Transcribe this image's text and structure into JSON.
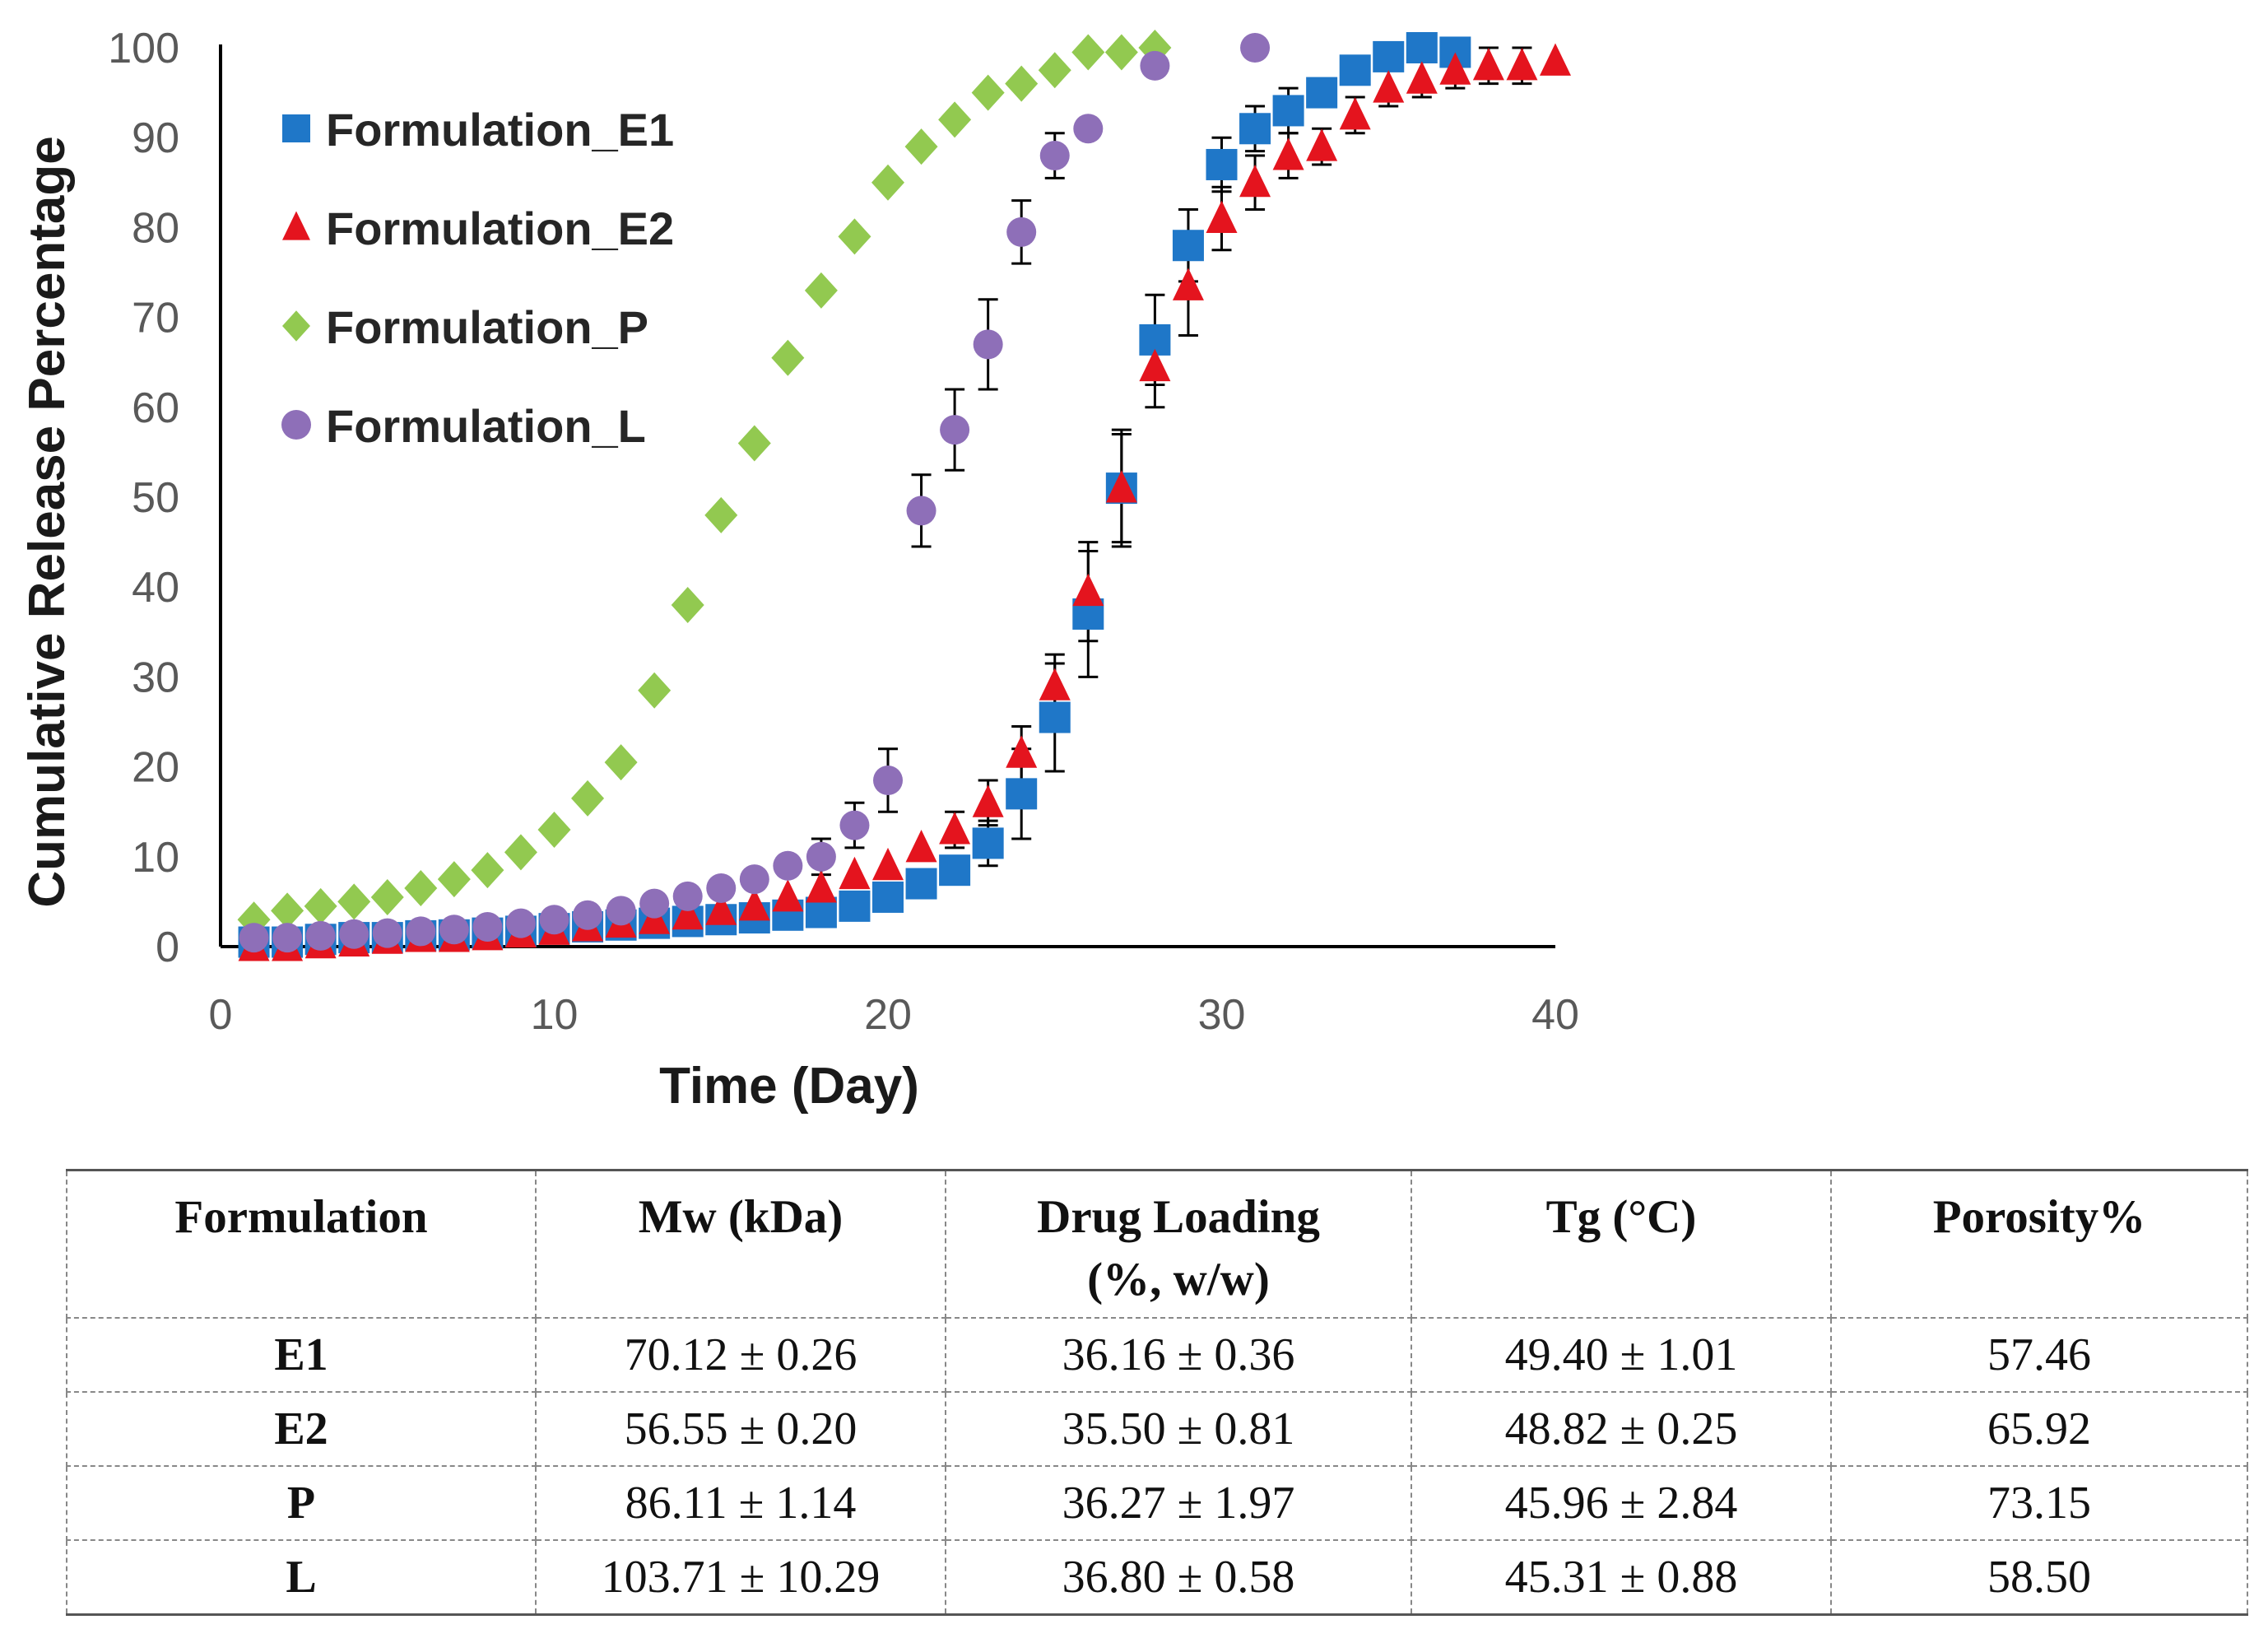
{
  "chart_data": {
    "type": "scatter",
    "title": "",
    "xlabel": "Time (Day)",
    "ylabel": "Cumulative Release Percentage",
    "xlim": [
      0,
      40
    ],
    "ylim": [
      0,
      100
    ],
    "xticks": [
      0,
      10,
      20,
      30,
      40
    ],
    "yticks": [
      0,
      10,
      20,
      30,
      40,
      50,
      60,
      70,
      80,
      90,
      100
    ],
    "legend_position": "top-left",
    "series": [
      {
        "name": "Formulation_E1",
        "color": "#1f77c8",
        "marker": "square",
        "x": [
          1,
          2,
          3,
          4,
          5,
          6,
          7,
          8,
          9,
          10,
          11,
          12,
          13,
          14,
          15,
          16,
          17,
          18,
          19,
          20,
          21,
          22,
          23,
          24,
          25,
          26,
          27,
          28,
          29,
          30,
          31,
          32,
          33,
          34,
          35,
          36,
          37
        ],
        "y": [
          0.5,
          0.5,
          0.8,
          1,
          1,
          1.2,
          1.3,
          1.5,
          1.7,
          2,
          2.2,
          2.4,
          2.6,
          2.8,
          3,
          3.2,
          3.5,
          3.8,
          4.5,
          5.5,
          7,
          8.5,
          11.5,
          17,
          25.5,
          37,
          51,
          67.5,
          78,
          87,
          91,
          93,
          95,
          97.5,
          99,
          100,
          99.5
        ],
        "err": [
          0,
          0,
          0,
          0,
          0,
          0,
          0,
          0,
          0,
          0,
          0,
          0,
          0,
          0,
          0,
          0,
          0,
          0,
          0,
          0,
          0,
          0,
          2.5,
          5,
          6,
          7,
          6,
          5,
          4,
          3,
          2.5,
          2.5,
          0,
          0,
          0,
          0,
          0
        ]
      },
      {
        "name": "Formulation_E2",
        "color": "#e4141e",
        "marker": "triangle",
        "x": [
          1,
          2,
          3,
          4,
          5,
          6,
          7,
          8,
          9,
          10,
          11,
          12,
          13,
          14,
          15,
          16,
          17,
          18,
          19,
          20,
          21,
          22,
          23,
          24,
          25,
          26,
          27,
          28,
          29,
          30,
          31,
          32,
          33,
          34,
          35,
          36,
          37,
          38,
          39,
          40
        ],
        "y": [
          0,
          0,
          0.3,
          0.5,
          0.8,
          1,
          1,
          1.2,
          1.5,
          1.8,
          2.2,
          2.6,
          3,
          3.5,
          4,
          4.5,
          5.5,
          6.5,
          8,
          9,
          11,
          13,
          16,
          21.5,
          29,
          39.5,
          51,
          64.5,
          73.5,
          81,
          85,
          88,
          89,
          92.5,
          95.5,
          96.5,
          97.5,
          98,
          98,
          98.5
        ],
        "err": [
          0,
          0,
          0,
          0,
          0,
          0,
          0,
          0,
          0,
          0,
          0,
          0,
          0,
          0,
          0,
          0,
          0,
          0,
          0,
          0,
          0,
          2,
          2.5,
          3,
          3.5,
          5.5,
          6.5,
          4.5,
          5.5,
          3.5,
          3,
          2.5,
          2,
          2,
          2,
          2,
          2,
          2,
          2,
          0
        ]
      },
      {
        "name": "Formulation_P",
        "color": "#92c950",
        "marker": "diamond",
        "x": [
          1,
          2,
          3,
          4,
          5,
          6,
          7,
          8,
          9,
          10,
          11,
          12,
          13,
          14,
          15,
          16,
          17,
          18,
          19,
          20,
          21,
          22,
          23,
          24,
          25,
          26,
          27,
          28
        ],
        "y": [
          3,
          4,
          4.5,
          5,
          5.5,
          6.5,
          7.5,
          8.5,
          10.5,
          13,
          16.5,
          20.5,
          28.5,
          38,
          48,
          56,
          65.5,
          73,
          79,
          85,
          89,
          92,
          95,
          96,
          97.5,
          99.5,
          99.5,
          100
        ],
        "err": []
      },
      {
        "name": "Formulation_L",
        "color": "#8e6fb8",
        "marker": "circle",
        "x": [
          1,
          2,
          3,
          4,
          5,
          6,
          7,
          8,
          9,
          10,
          11,
          12,
          13,
          14,
          15,
          16,
          17,
          18,
          19,
          20,
          21,
          22,
          23,
          24,
          25,
          26,
          28,
          31
        ],
        "y": [
          1,
          1,
          1.2,
          1.4,
          1.5,
          1.7,
          1.9,
          2.2,
          2.6,
          3,
          3.5,
          4,
          4.8,
          5.6,
          6.5,
          7.5,
          9,
          10,
          13.5,
          18.5,
          48.5,
          57.5,
          67,
          79.5,
          88,
          91,
          98,
          100
        ],
        "err": [
          0,
          0,
          0,
          0,
          0,
          0,
          0,
          0,
          0,
          0,
          0,
          0,
          0,
          0,
          0,
          0,
          0,
          2,
          2.5,
          3.5,
          4,
          4.5,
          5,
          3.5,
          2.5,
          0,
          0,
          0
        ]
      }
    ]
  },
  "table": {
    "headers": [
      "Formulation",
      "Mw (kDa)",
      "Drug Loading (%, w/w)",
      "Tg (°C)",
      "Porosity%"
    ],
    "rows": [
      [
        "E1",
        "70.12 ± 0.26",
        "36.16 ± 0.36",
        "49.40 ± 1.01",
        "57.46"
      ],
      [
        "E2",
        "56.55 ± 0.20",
        "35.50 ± 0.81",
        "48.82 ± 0.25",
        "65.92"
      ],
      [
        "P",
        "86.11 ± 1.14",
        "36.27 ± 1.97",
        "45.96 ± 2.84",
        "73.15"
      ],
      [
        "L",
        "103.71 ± 10.29",
        "36.80 ± 0.58",
        "45.31 ± 0.88",
        "58.50"
      ]
    ]
  }
}
